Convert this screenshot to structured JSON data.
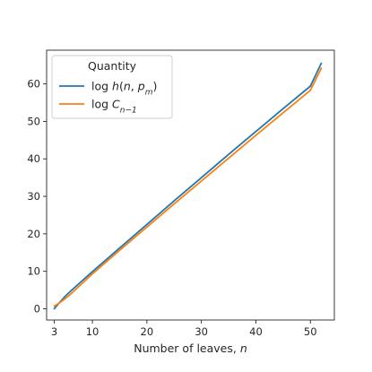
{
  "chart_data": {
    "type": "line",
    "title": "",
    "xlabel": "Number of leaves, n",
    "ylabel": "",
    "xlim": [
      1.6,
      54.4
    ],
    "ylim": [
      -3,
      69
    ],
    "xticks": [
      3,
      10,
      20,
      30,
      40,
      50
    ],
    "yticks": [
      0,
      10,
      20,
      30,
      40,
      50,
      60
    ],
    "grid": false,
    "legend": {
      "title": "Quantity",
      "placement": "top-left"
    },
    "x": [
      3,
      4,
      5,
      6,
      8,
      10,
      15,
      20,
      25,
      30,
      35,
      40,
      45,
      50,
      52
    ],
    "series": [
      {
        "name": "log h(n, p_m)",
        "color": "#1f77b4",
        "values": [
          0.0,
          1.7,
          3.3,
          4.7,
          7.3,
          9.9,
          16.2,
          22.5,
          28.8,
          35.0,
          41.2,
          47.3,
          53.4,
          59.4,
          65.5
        ]
      },
      {
        "name": "log C_{n-1}",
        "color": "#ff7f0e",
        "values": [
          0.7,
          1.6,
          2.7,
          3.9,
          6.6,
          9.3,
          15.6,
          21.8,
          28.0,
          34.1,
          40.2,
          46.3,
          52.3,
          58.3,
          64.2
        ]
      }
    ]
  }
}
